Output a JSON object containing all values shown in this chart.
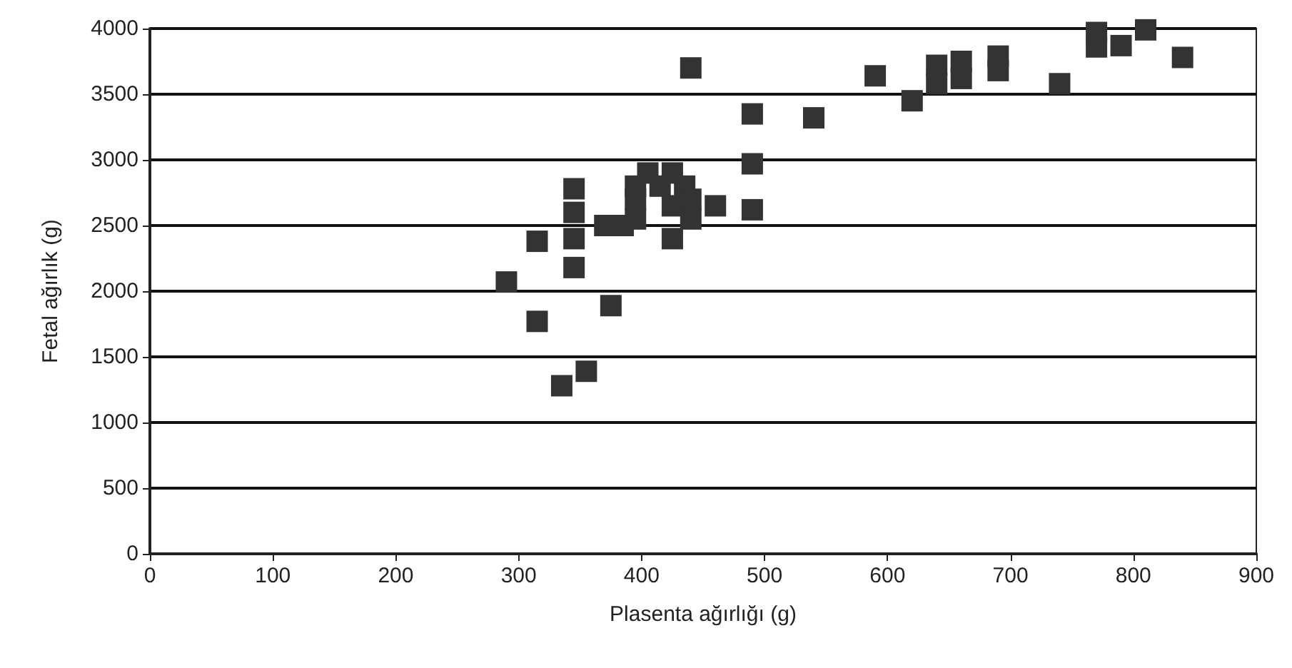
{
  "chart_data": {
    "type": "scatter",
    "xlabel": "Plasenta ağırlığı (g)",
    "ylabel": "Fetal ağırlık (g)",
    "x": [
      290,
      315,
      315,
      335,
      345,
      345,
      345,
      345,
      355,
      370,
      375,
      385,
      395,
      395,
      395,
      405,
      415,
      425,
      425,
      425,
      435,
      440,
      440,
      440,
      460,
      490,
      490,
      490,
      540,
      590,
      620,
      640,
      640,
      660,
      660,
      690,
      690,
      740,
      770,
      770,
      790,
      810,
      840
    ],
    "values": [
      2070,
      2380,
      1770,
      1280,
      2780,
      2600,
      2400,
      2180,
      1390,
      2500,
      1890,
      2500,
      2550,
      2700,
      2800,
      2900,
      2800,
      2900,
      2400,
      2650,
      2800,
      2700,
      2550,
      3700,
      2650,
      3350,
      2970,
      2620,
      3320,
      3640,
      3450,
      3720,
      3580,
      3750,
      3620,
      3680,
      3790,
      3580,
      3970,
      3860,
      3870,
      3990,
      3780
    ],
    "color": "#333333",
    "marker": "square",
    "grid": "y",
    "xlim": [
      0,
      900
    ],
    "xticks": [
      0,
      100,
      200,
      300,
      400,
      500,
      600,
      700,
      800,
      900
    ],
    "ylim": [
      0,
      4000
    ],
    "yticks": [
      0,
      500,
      1000,
      1500,
      2000,
      2500,
      3000,
      3500,
      4000
    ]
  }
}
